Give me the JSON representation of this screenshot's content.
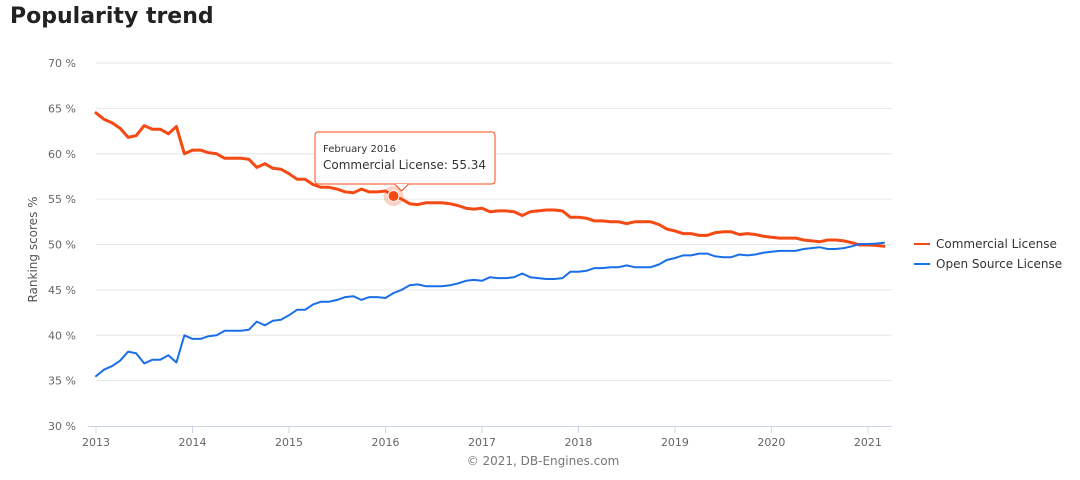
{
  "page": {
    "title": "Popularity trend"
  },
  "chart_data": {
    "type": "line",
    "title": "",
    "xlabel": "",
    "ylabel": "Ranking scores %",
    "ylim": [
      30,
      70
    ],
    "xlim": [
      "2013-01",
      "2021-03"
    ],
    "grid": true,
    "legend": "right",
    "y_ticks": [
      "30 %",
      "35 %",
      "40 %",
      "45 %",
      "50 %",
      "55 %",
      "60 %",
      "65 %",
      "70 %"
    ],
    "x_ticks": [
      "2013",
      "2014",
      "2015",
      "2016",
      "2017",
      "2018",
      "2019",
      "2020",
      "2021"
    ],
    "credits": "© 2021, DB-Engines.com",
    "series": [
      {
        "name": "Commercial License",
        "color": "#f54a13",
        "points": [
          [
            "2013-01",
            64.5
          ],
          [
            "2013-02",
            63.8
          ],
          [
            "2013-03",
            63.4
          ],
          [
            "2013-04",
            62.8
          ],
          [
            "2013-05",
            61.8
          ],
          [
            "2013-06",
            62.0
          ],
          [
            "2013-07",
            63.1
          ],
          [
            "2013-08",
            62.7
          ],
          [
            "2013-09",
            62.7
          ],
          [
            "2013-10",
            62.2
          ],
          [
            "2013-11",
            63.0
          ],
          [
            "2013-12",
            60.0
          ],
          [
            "2014-01",
            60.4
          ],
          [
            "2014-02",
            60.4
          ],
          [
            "2014-03",
            60.1
          ],
          [
            "2014-04",
            60.0
          ],
          [
            "2014-05",
            59.5
          ],
          [
            "2014-06",
            59.5
          ],
          [
            "2014-07",
            59.5
          ],
          [
            "2014-08",
            59.4
          ],
          [
            "2014-09",
            58.5
          ],
          [
            "2014-10",
            58.9
          ],
          [
            "2014-11",
            58.4
          ],
          [
            "2014-12",
            58.3
          ],
          [
            "2015-01",
            57.8
          ],
          [
            "2015-02",
            57.2
          ],
          [
            "2015-03",
            57.2
          ],
          [
            "2015-04",
            56.6
          ],
          [
            "2015-05",
            56.3
          ],
          [
            "2015-06",
            56.3
          ],
          [
            "2015-07",
            56.1
          ],
          [
            "2015-08",
            55.8
          ],
          [
            "2015-09",
            55.7
          ],
          [
            "2015-10",
            56.1
          ],
          [
            "2015-11",
            55.8
          ],
          [
            "2015-12",
            55.8
          ],
          [
            "2016-01",
            55.9
          ],
          [
            "2016-02",
            55.34
          ],
          [
            "2016-03",
            55.0
          ],
          [
            "2016-04",
            54.5
          ],
          [
            "2016-05",
            54.4
          ],
          [
            "2016-06",
            54.6
          ],
          [
            "2016-07",
            54.6
          ],
          [
            "2016-08",
            54.6
          ],
          [
            "2016-09",
            54.5
          ],
          [
            "2016-10",
            54.3
          ],
          [
            "2016-11",
            54.0
          ],
          [
            "2016-12",
            53.9
          ],
          [
            "2017-01",
            54.0
          ],
          [
            "2017-02",
            53.6
          ],
          [
            "2017-03",
            53.7
          ],
          [
            "2017-04",
            53.7
          ],
          [
            "2017-05",
            53.6
          ],
          [
            "2017-06",
            53.2
          ],
          [
            "2017-07",
            53.6
          ],
          [
            "2017-08",
            53.7
          ],
          [
            "2017-09",
            53.8
          ],
          [
            "2017-10",
            53.8
          ],
          [
            "2017-11",
            53.7
          ],
          [
            "2017-12",
            53.0
          ],
          [
            "2018-01",
            53.0
          ],
          [
            "2018-02",
            52.9
          ],
          [
            "2018-03",
            52.6
          ],
          [
            "2018-04",
            52.6
          ],
          [
            "2018-05",
            52.5
          ],
          [
            "2018-06",
            52.5
          ],
          [
            "2018-07",
            52.3
          ],
          [
            "2018-08",
            52.5
          ],
          [
            "2018-09",
            52.5
          ],
          [
            "2018-10",
            52.5
          ],
          [
            "2018-11",
            52.2
          ],
          [
            "2018-12",
            51.7
          ],
          [
            "2019-01",
            51.5
          ],
          [
            "2019-02",
            51.2
          ],
          [
            "2019-03",
            51.2
          ],
          [
            "2019-04",
            51.0
          ],
          [
            "2019-05",
            51.0
          ],
          [
            "2019-06",
            51.3
          ],
          [
            "2019-07",
            51.4
          ],
          [
            "2019-08",
            51.4
          ],
          [
            "2019-09",
            51.1
          ],
          [
            "2019-10",
            51.2
          ],
          [
            "2019-11",
            51.1
          ],
          [
            "2019-12",
            50.9
          ],
          [
            "2020-01",
            50.8
          ],
          [
            "2020-02",
            50.7
          ],
          [
            "2020-03",
            50.7
          ],
          [
            "2020-04",
            50.7
          ],
          [
            "2020-05",
            50.5
          ],
          [
            "2020-06",
            50.4
          ],
          [
            "2020-07",
            50.3
          ],
          [
            "2020-08",
            50.5
          ],
          [
            "2020-09",
            50.5
          ],
          [
            "2020-10",
            50.4
          ],
          [
            "2020-11",
            50.2
          ],
          [
            "2020-12",
            49.95
          ],
          [
            "2021-01",
            49.95
          ],
          [
            "2021-02",
            49.9
          ],
          [
            "2021-03",
            49.8
          ]
        ]
      },
      {
        "name": "Open Source License",
        "color": "#1a6fe8",
        "points": [
          [
            "2013-01",
            35.5
          ],
          [
            "2013-02",
            36.2
          ],
          [
            "2013-03",
            36.6
          ],
          [
            "2013-04",
            37.2
          ],
          [
            "2013-05",
            38.2
          ],
          [
            "2013-06",
            38.0
          ],
          [
            "2013-07",
            36.9
          ],
          [
            "2013-08",
            37.3
          ],
          [
            "2013-09",
            37.3
          ],
          [
            "2013-10",
            37.8
          ],
          [
            "2013-11",
            37.0
          ],
          [
            "2013-12",
            40.0
          ],
          [
            "2014-01",
            39.6
          ],
          [
            "2014-02",
            39.6
          ],
          [
            "2014-03",
            39.9
          ],
          [
            "2014-04",
            40.0
          ],
          [
            "2014-05",
            40.5
          ],
          [
            "2014-06",
            40.5
          ],
          [
            "2014-07",
            40.5
          ],
          [
            "2014-08",
            40.6
          ],
          [
            "2014-09",
            41.5
          ],
          [
            "2014-10",
            41.1
          ],
          [
            "2014-11",
            41.6
          ],
          [
            "2014-12",
            41.7
          ],
          [
            "2015-01",
            42.2
          ],
          [
            "2015-02",
            42.8
          ],
          [
            "2015-03",
            42.8
          ],
          [
            "2015-04",
            43.4
          ],
          [
            "2015-05",
            43.7
          ],
          [
            "2015-06",
            43.7
          ],
          [
            "2015-07",
            43.9
          ],
          [
            "2015-08",
            44.2
          ],
          [
            "2015-09",
            44.3
          ],
          [
            "2015-10",
            43.9
          ],
          [
            "2015-11",
            44.2
          ],
          [
            "2015-12",
            44.2
          ],
          [
            "2016-01",
            44.1
          ],
          [
            "2016-02",
            44.66
          ],
          [
            "2016-03",
            45.0
          ],
          [
            "2016-04",
            45.5
          ],
          [
            "2016-05",
            45.6
          ],
          [
            "2016-06",
            45.4
          ],
          [
            "2016-07",
            45.4
          ],
          [
            "2016-08",
            45.4
          ],
          [
            "2016-09",
            45.5
          ],
          [
            "2016-10",
            45.7
          ],
          [
            "2016-11",
            46.0
          ],
          [
            "2016-12",
            46.1
          ],
          [
            "2017-01",
            46.0
          ],
          [
            "2017-02",
            46.4
          ],
          [
            "2017-03",
            46.3
          ],
          [
            "2017-04",
            46.3
          ],
          [
            "2017-05",
            46.4
          ],
          [
            "2017-06",
            46.8
          ],
          [
            "2017-07",
            46.4
          ],
          [
            "2017-08",
            46.3
          ],
          [
            "2017-09",
            46.2
          ],
          [
            "2017-10",
            46.2
          ],
          [
            "2017-11",
            46.3
          ],
          [
            "2017-12",
            47.0
          ],
          [
            "2018-01",
            47.0
          ],
          [
            "2018-02",
            47.1
          ],
          [
            "2018-03",
            47.4
          ],
          [
            "2018-04",
            47.4
          ],
          [
            "2018-05",
            47.5
          ],
          [
            "2018-06",
            47.5
          ],
          [
            "2018-07",
            47.7
          ],
          [
            "2018-08",
            47.5
          ],
          [
            "2018-09",
            47.5
          ],
          [
            "2018-10",
            47.5
          ],
          [
            "2018-11",
            47.8
          ],
          [
            "2018-12",
            48.3
          ],
          [
            "2019-01",
            48.5
          ],
          [
            "2019-02",
            48.8
          ],
          [
            "2019-03",
            48.8
          ],
          [
            "2019-04",
            49.0
          ],
          [
            "2019-05",
            49.0
          ],
          [
            "2019-06",
            48.7
          ],
          [
            "2019-07",
            48.6
          ],
          [
            "2019-08",
            48.6
          ],
          [
            "2019-09",
            48.9
          ],
          [
            "2019-10",
            48.8
          ],
          [
            "2019-11",
            48.9
          ],
          [
            "2019-12",
            49.1
          ],
          [
            "2020-01",
            49.2
          ],
          [
            "2020-02",
            49.3
          ],
          [
            "2020-03",
            49.3
          ],
          [
            "2020-04",
            49.3
          ],
          [
            "2020-05",
            49.5
          ],
          [
            "2020-06",
            49.6
          ],
          [
            "2020-07",
            49.7
          ],
          [
            "2020-08",
            49.5
          ],
          [
            "2020-09",
            49.5
          ],
          [
            "2020-10",
            49.6
          ],
          [
            "2020-11",
            49.8
          ],
          [
            "2020-12",
            50.05
          ],
          [
            "2021-01",
            50.05
          ],
          [
            "2021-02",
            50.1
          ],
          [
            "2021-03",
            50.2
          ]
        ]
      }
    ],
    "tooltip": {
      "date": "February 2016",
      "label": "Commercial License: 55.34",
      "series": "Commercial License",
      "x": "2016-02",
      "y": 55.34
    }
  }
}
